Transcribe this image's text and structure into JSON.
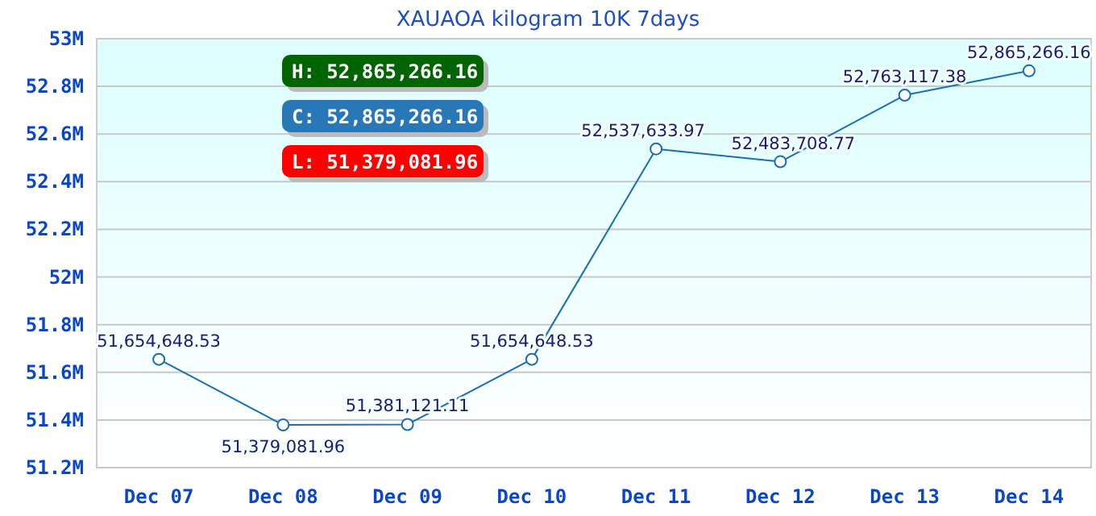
{
  "chart_data": {
    "type": "line",
    "title": "XAUAOA kilogram 10K 7days",
    "categories": [
      "Dec 07",
      "Dec 08",
      "Dec 09",
      "Dec 10",
      "Dec 11",
      "Dec 12",
      "Dec 13",
      "Dec 14"
    ],
    "series": [
      {
        "color": "#1a6fb0",
        "values": [
          51654648.53,
          51379081.96,
          51381121.11,
          51654648.53,
          52537633.97,
          52483708.77,
          52763117.38,
          52865266.16
        ],
        "value_labels": [
          "51,654,648.53",
          "51,379,081.96",
          "51,381,121.11",
          "51,654,648.53",
          "52,537,633.97",
          "52,483,708.77",
          "52,763,117.38",
          "52,865,266.16"
        ]
      }
    ],
    "ylim": [
      51200000,
      53000000
    ],
    "yticks": [
      {
        "value": 51200000,
        "label": "51.2M"
      },
      {
        "value": 51400000,
        "label": "51.4M"
      },
      {
        "value": 51600000,
        "label": "51.6M"
      },
      {
        "value": 51800000,
        "label": "51.8M"
      },
      {
        "value": 52000000,
        "label": "52M"
      },
      {
        "value": 52200000,
        "label": "52.2M"
      },
      {
        "value": 52400000,
        "label": "52.4M"
      },
      {
        "value": 52600000,
        "label": "52.6M"
      },
      {
        "value": 52800000,
        "label": "52.8M"
      },
      {
        "value": 53000000,
        "label": "53M"
      }
    ],
    "grid": "y",
    "marker": "circle",
    "annotations": [
      "H: 52,865,266.16",
      "C: 52,865,266.16",
      "L: 51,379,081.96"
    ]
  }
}
